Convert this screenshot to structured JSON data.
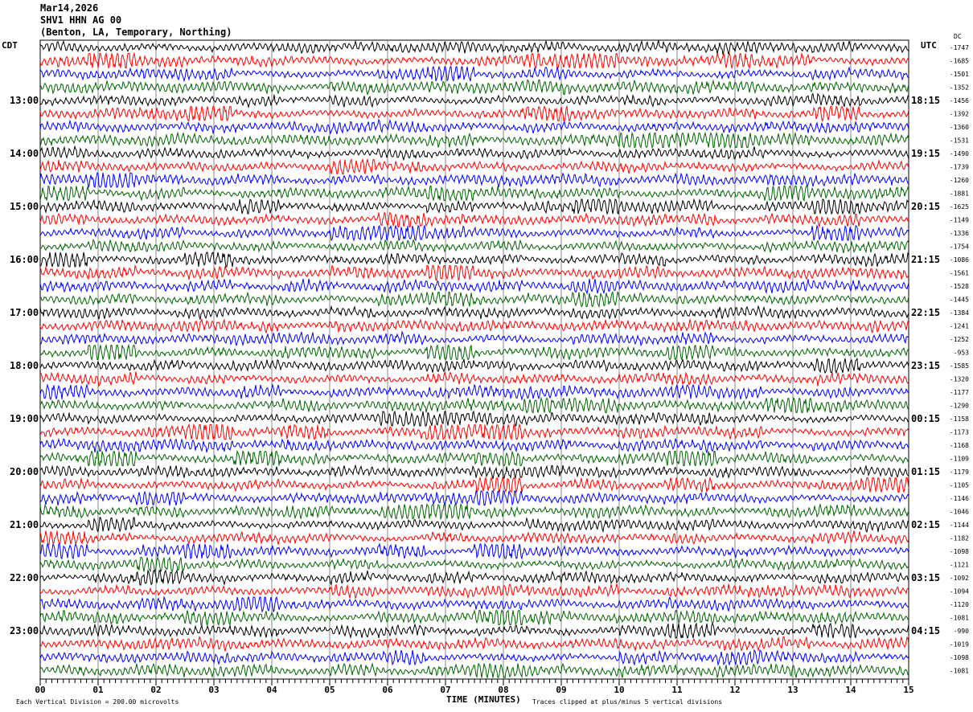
{
  "header": {
    "date": "Mar14,2026",
    "station": "SHV1 HHN AG 00",
    "location": "(Benton, LA, Temporary, Northing)"
  },
  "chart_data": {
    "type": "line",
    "title": "Mar14,2026 SHV1 HHN AG 00 (Benton, LA, Temporary, Northing)",
    "xlabel": "TIME (MINUTES)",
    "xlim": [
      0,
      15
    ],
    "x_ticks": [
      "00",
      "01",
      "02",
      "03",
      "04",
      "05",
      "06",
      "07",
      "08",
      "09",
      "10",
      "11",
      "12",
      "13",
      "14",
      "15"
    ],
    "left_axis_label": "CDT",
    "right_axis_label": "UTC",
    "dc_label": "DC",
    "left_time_labels": [
      "13:00",
      "14:00",
      "15:00",
      "16:00",
      "17:00",
      "18:00",
      "19:00",
      "20:00",
      "21:00",
      "22:00",
      "23:00"
    ],
    "right_time_labels": [
      "18:15",
      "19:15",
      "20:15",
      "21:15",
      "22:15",
      "23:15",
      "00:15",
      "01:15",
      "02:15",
      "03:15",
      "04:15"
    ],
    "trace_colors": [
      "#000000",
      "#ff0000",
      "#0000ff",
      "#006400"
    ],
    "dc_offsets": [
      -1747,
      -1685,
      -1501,
      -1352,
      -1456,
      -1392,
      -1360,
      -1531,
      -1490,
      -1739,
      -1260,
      -1881,
      -1625,
      -1149,
      -1336,
      -1754,
      -1086,
      -1561,
      -1528,
      -1445,
      -1384,
      -1241,
      -1252,
      -953,
      -1585,
      -1320,
      -1177,
      -1290,
      -1158,
      -1173,
      -1168,
      -1109,
      -1179,
      -1105,
      -1146,
      -1046,
      -1144,
      -1182,
      -1098,
      -1121,
      -1092,
      -1094,
      -1120,
      -1081,
      -990,
      -1019,
      -1098,
      -1081
    ],
    "scale_note": "Each Vertical Division =  200.00 microvolts",
    "clip_note": "Traces clipped at plus/minus 5 vertical divisions"
  }
}
